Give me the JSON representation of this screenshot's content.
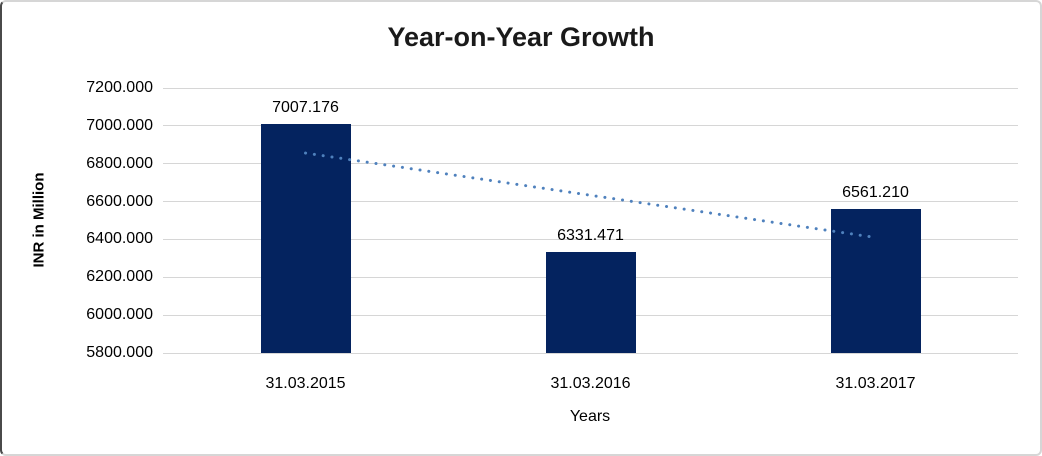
{
  "chart_title": "Year-on-Year Growth",
  "y_axis": {
    "title": "INR in Million",
    "tick_labels": [
      "7200.000",
      "7000.000",
      "6800.000",
      "6600.000",
      "6400.000",
      "6200.000",
      "6000.000",
      "5800.000"
    ]
  },
  "x_axis": {
    "title": "Years",
    "tick_labels": [
      "31.03.2015",
      "31.03.2016",
      "31.03.2017"
    ]
  },
  "chart_data": {
    "type": "bar",
    "title": "Year-on-Year Growth",
    "categories": [
      "31.03.2015",
      "31.03.2016",
      "31.03.2017"
    ],
    "values": [
      7007.176,
      6331.471,
      6561.21
    ],
    "data_labels": [
      "7007.176",
      "6331.471",
      "6561.210"
    ],
    "xlabel": "Years",
    "ylabel": "INR in Million",
    "ylim": [
      5800,
      7200
    ],
    "ytick_step": 200,
    "grid": true,
    "legend": false,
    "bar_color": "#04235f",
    "gridline_color": "#d6d6d6",
    "text_color": "#000000",
    "trendline": {
      "type": "linear",
      "style": "dotted",
      "color": "#4f81bd"
    }
  }
}
